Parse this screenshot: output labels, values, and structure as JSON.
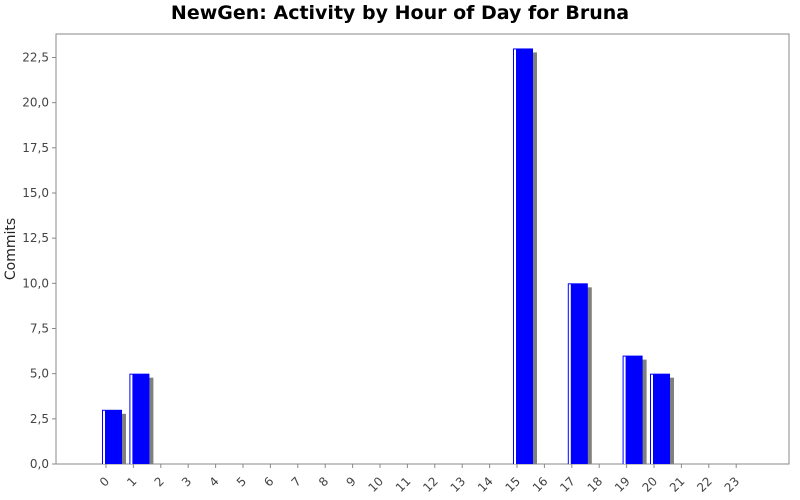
{
  "chart_data": {
    "type": "bar",
    "title": "NewGen: Activity by Hour of Day for Bruna",
    "xlabel": "",
    "ylabel": "Commits",
    "categories": [
      "0",
      "1",
      "2",
      "3",
      "4",
      "5",
      "6",
      "7",
      "8",
      "9",
      "10",
      "11",
      "12",
      "13",
      "14",
      "15",
      "16",
      "17",
      "18",
      "19",
      "20",
      "21",
      "22",
      "23"
    ],
    "values": [
      3,
      5,
      0,
      0,
      0,
      0,
      0,
      0,
      0,
      0,
      0,
      0,
      0,
      0,
      0,
      23,
      0,
      10,
      0,
      6,
      5,
      0,
      0,
      0
    ],
    "ylim": [
      0,
      23.8
    ],
    "yticks": [
      "0,0",
      "2,5",
      "5,0",
      "7,5",
      "10,0",
      "12,5",
      "15,0",
      "17,5",
      "20,0",
      "22,5"
    ],
    "ytick_values": [
      0,
      2.5,
      5,
      7.5,
      10,
      12.5,
      15,
      17.5,
      20,
      22.5
    ],
    "bar_color": "#0000ff",
    "shadow_color": "#808080",
    "grid": false
  }
}
